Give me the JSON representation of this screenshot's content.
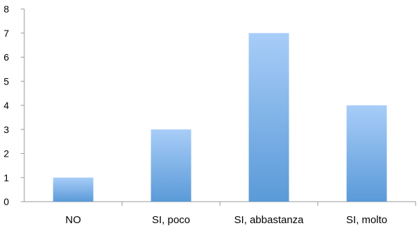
{
  "chart_data": {
    "type": "bar",
    "categories": [
      "NO",
      "SI, poco",
      "SI, abbastanza",
      "SI, molto"
    ],
    "values": [
      1,
      3,
      7,
      4
    ],
    "title": "",
    "xlabel": "",
    "ylabel": "",
    "ylim": [
      0,
      8
    ],
    "yticks": [
      "0",
      "1",
      "2",
      "3",
      "4",
      "5",
      "6",
      "7",
      "8"
    ],
    "grid": false,
    "bar_color_top": "#a8cdf8",
    "bar_color_bottom": "#5a9ad8"
  }
}
